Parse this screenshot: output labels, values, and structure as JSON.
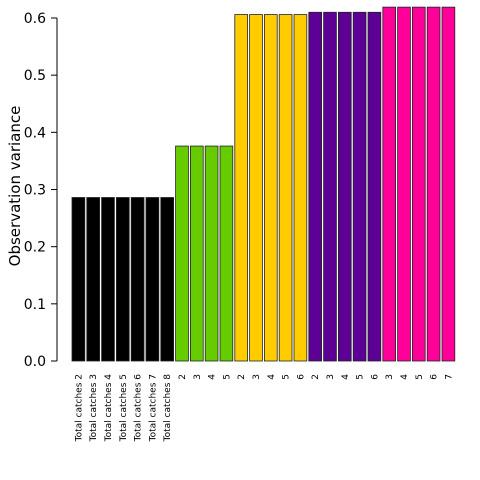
{
  "chart_data": {
    "type": "bar",
    "title": "",
    "xlabel": "",
    "ylabel": "Observation variance",
    "ylim": [
      0,
      0.6
    ],
    "yticks": [
      "0.0",
      "0.1",
      "0.2",
      "0.3",
      "0.4",
      "0.5",
      "0.6"
    ],
    "grid": false,
    "legend": "none",
    "groups": [
      {
        "color": "#000000",
        "categories": [
          "Total catches 2",
          "Total catches 3",
          "Total catches 4",
          "Total catches 5",
          "Total catches 6",
          "Total catches 7",
          "Total catches 8"
        ],
        "values": [
          0.286,
          0.286,
          0.286,
          0.286,
          0.286,
          0.286,
          0.286
        ]
      },
      {
        "color": "#66CC00",
        "categories": [
          "2",
          "3",
          "4",
          "5"
        ],
        "values": [
          0.376,
          0.376,
          0.376,
          0.376
        ]
      },
      {
        "color": "#FFCC00",
        "categories": [
          "2",
          "3",
          "4",
          "5",
          "6"
        ],
        "values": [
          0.606,
          0.606,
          0.606,
          0.606,
          0.606
        ]
      },
      {
        "color": "#5C0096",
        "categories": [
          "2",
          "3",
          "4",
          "5",
          "6"
        ],
        "values": [
          0.61,
          0.61,
          0.61,
          0.61,
          0.61
        ]
      },
      {
        "color": "#FF0099",
        "categories": [
          "3",
          "4",
          "5",
          "6",
          "7"
        ],
        "values": [
          0.619,
          0.619,
          0.619,
          0.619,
          0.619
        ]
      }
    ]
  }
}
